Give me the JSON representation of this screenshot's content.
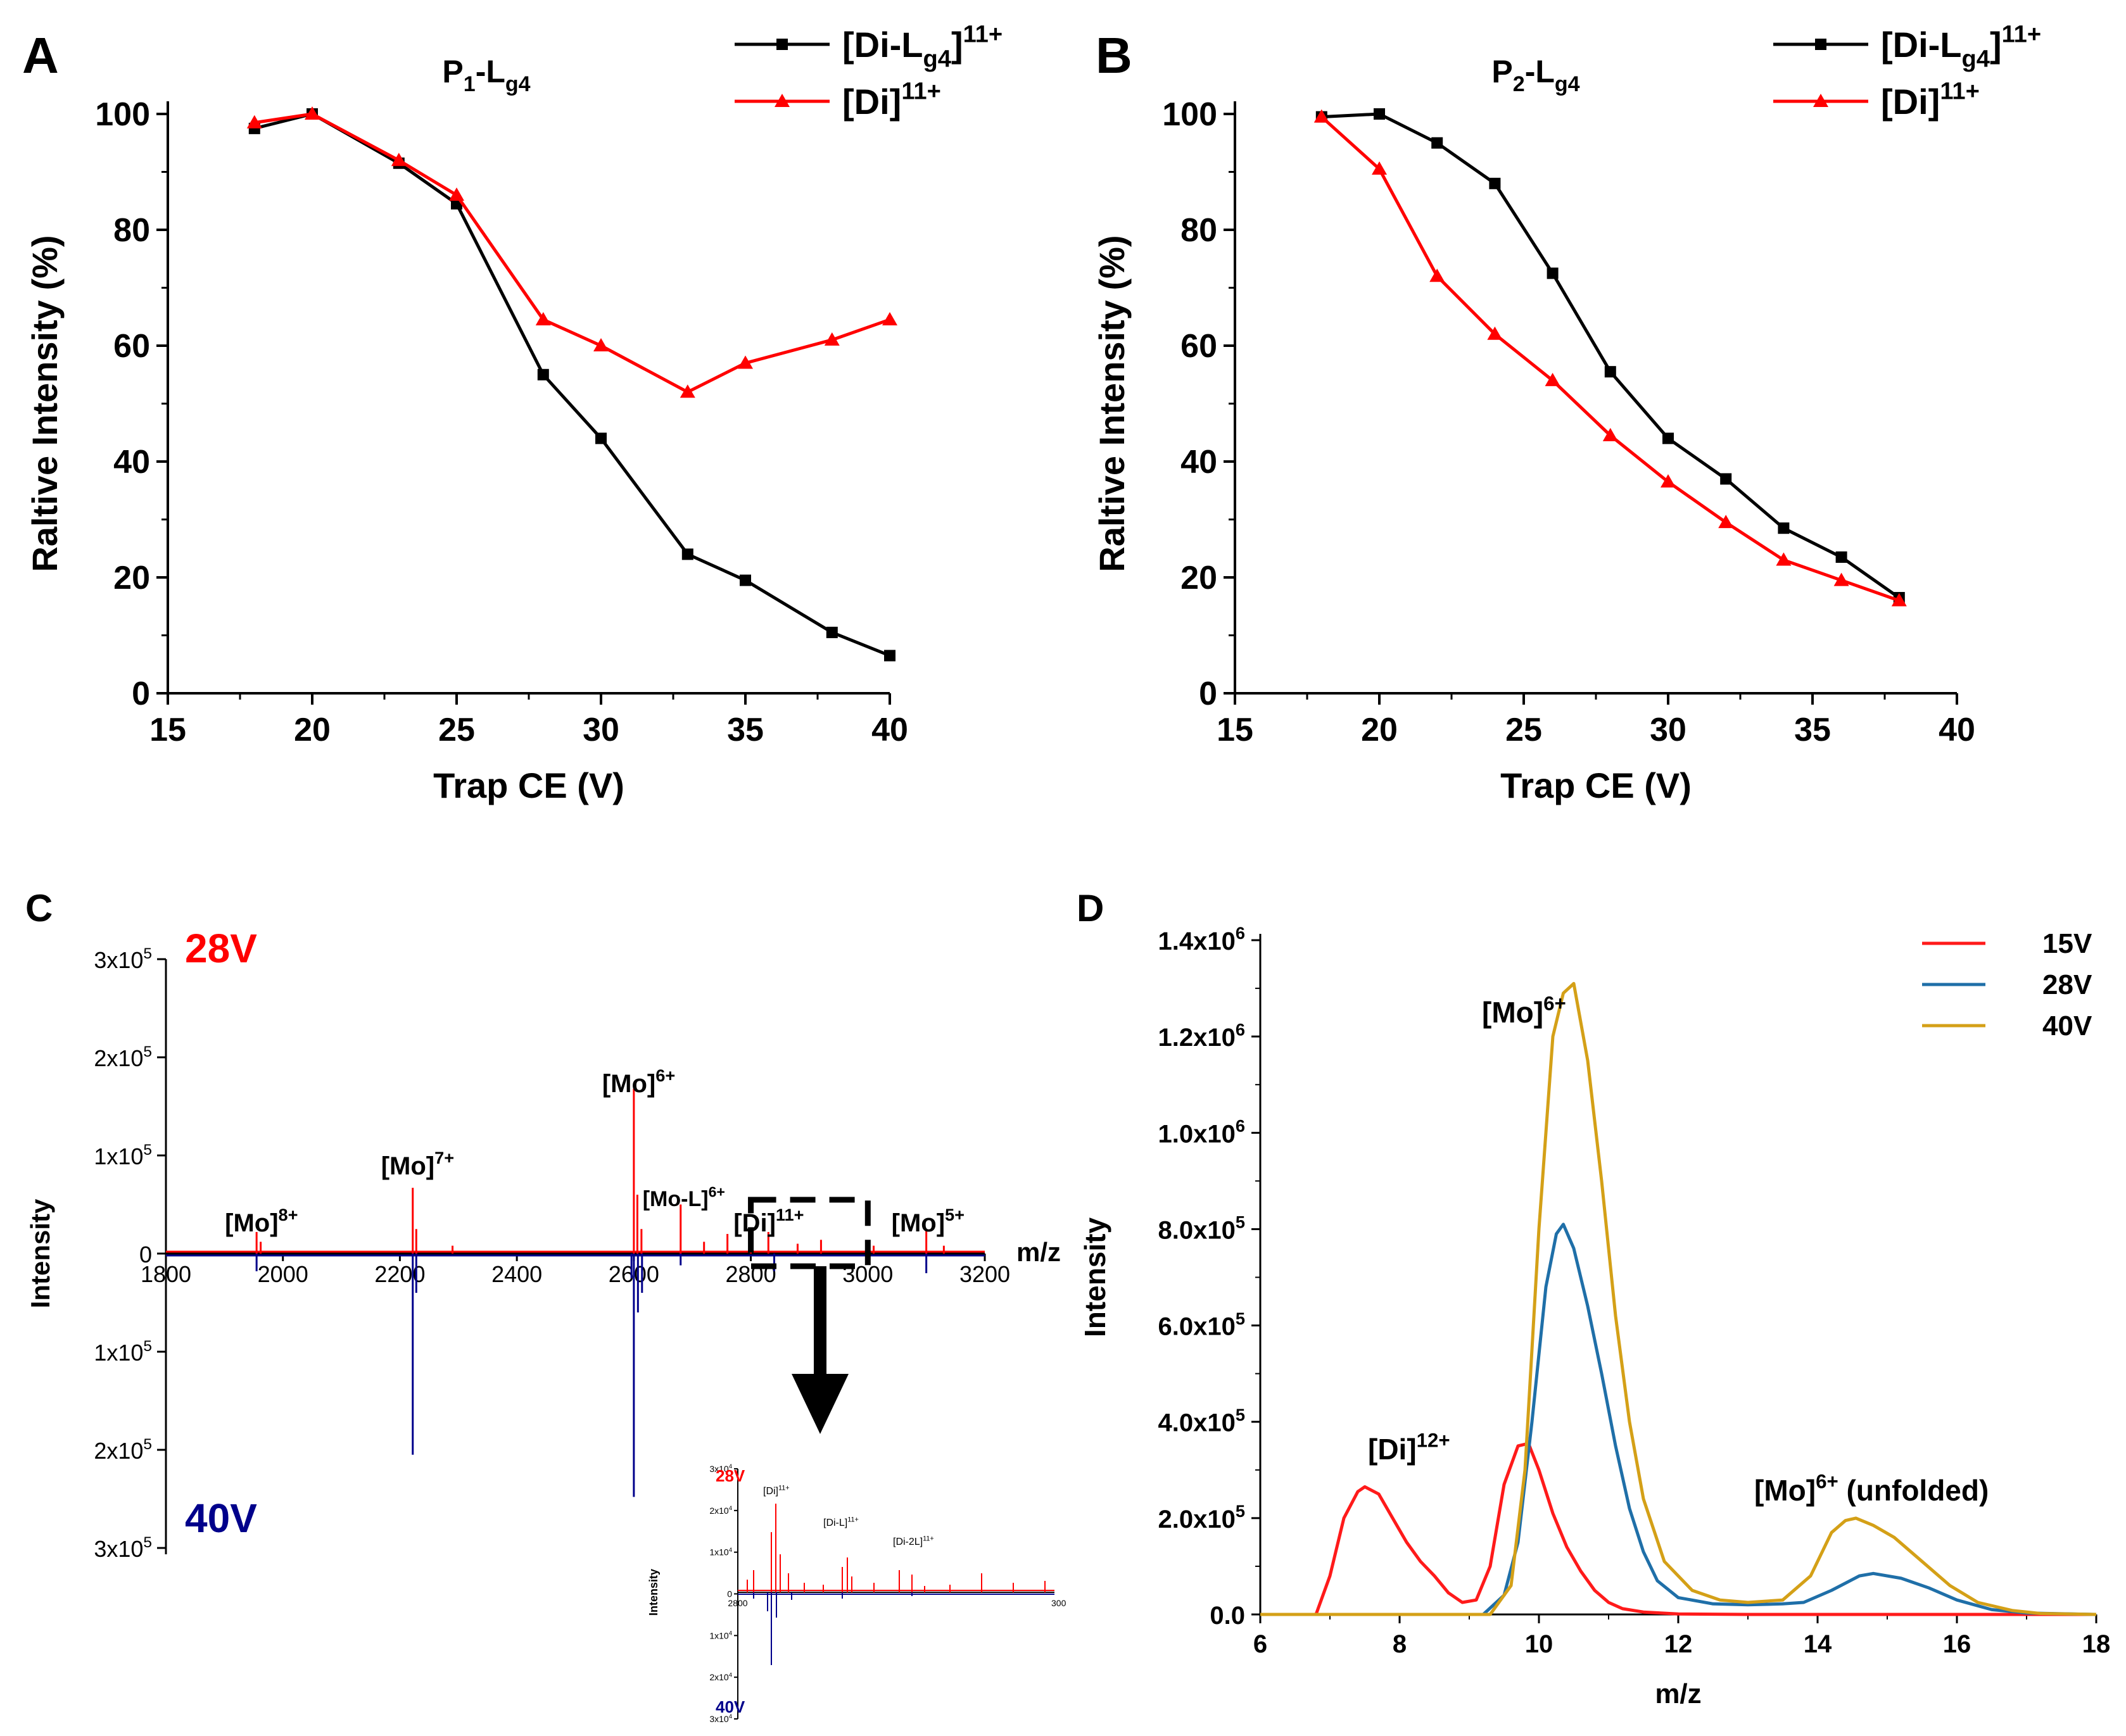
{
  "chart_data": [
    {
      "type": "line",
      "panel": "A",
      "title": "P1-Lg4",
      "title_parts": {
        "base1": "P",
        "sub1": "1",
        "mid": "-L",
        "sub2": "g4"
      },
      "xlabel": "Trap CE (V)",
      "ylabel": "Raltive Intensity (%)",
      "xlim": [
        15,
        40
      ],
      "ylim": [
        0,
        100
      ],
      "xticks": [
        "15",
        "20",
        "25",
        "30",
        "35",
        "40"
      ],
      "yticks": [
        "0",
        "20",
        "40",
        "60",
        "80",
        "100"
      ],
      "legend_position": "top-right",
      "series": [
        {
          "name": "[Di-Lg4]11+",
          "label_parts": {
            "main": "[Di-L",
            "sub": "g4",
            "close": "]",
            "sup": "11+"
          },
          "color": "#000000",
          "marker": "square",
          "x": [
            18,
            20,
            23,
            25,
            28,
            30,
            33,
            35,
            38,
            40
          ],
          "y": [
            97.5,
            100,
            91.5,
            84.5,
            55,
            44,
            24,
            19.5,
            10.5,
            6.5
          ]
        },
        {
          "name": "[Di]11+",
          "label_parts": {
            "main": "[Di",
            "sub": "",
            "close": "]",
            "sup": "11+"
          },
          "color": "#ff0000",
          "marker": "triangle",
          "x": [
            18,
            20,
            23,
            25,
            28,
            30,
            33,
            35,
            38,
            40
          ],
          "y": [
            98.5,
            100,
            92,
            86,
            64.5,
            60,
            52,
            57,
            61,
            64.5
          ]
        }
      ]
    },
    {
      "type": "line",
      "panel": "B",
      "title": "P2-Lg4",
      "title_parts": {
        "base1": "P",
        "sub1": "2",
        "mid": "-L",
        "sub2": "g4"
      },
      "xlabel": "Trap CE (V)",
      "ylabel": "Raltive Intensity (%)",
      "xlim": [
        15,
        40
      ],
      "ylim": [
        0,
        100
      ],
      "xticks": [
        "15",
        "20",
        "25",
        "30",
        "35",
        "40"
      ],
      "yticks": [
        "0",
        "20",
        "40",
        "60",
        "80",
        "100"
      ],
      "legend_position": "top-right",
      "series": [
        {
          "name": "[Di-Lg4]11+",
          "label_parts": {
            "main": "[Di-L",
            "sub": "g4",
            "close": "]",
            "sup": "11+"
          },
          "color": "#000000",
          "marker": "square",
          "x": [
            18,
            20,
            22,
            24,
            26,
            28,
            30,
            32,
            34,
            36,
            38
          ],
          "y": [
            99.5,
            100,
            95,
            88,
            72.5,
            55.5,
            44,
            37,
            28.5,
            23.5,
            16.5
          ]
        },
        {
          "name": "[Di]11+",
          "label_parts": {
            "main": "[Di",
            "sub": "",
            "close": "]",
            "sup": "11+"
          },
          "color": "#ff0000",
          "marker": "triangle",
          "x": [
            18,
            20,
            22,
            24,
            26,
            28,
            30,
            32,
            34,
            36,
            38
          ],
          "y": [
            99.5,
            90.5,
            72,
            62,
            54,
            44.5,
            36.5,
            29.5,
            23,
            19.5,
            16
          ]
        }
      ]
    },
    {
      "type": "spectrum",
      "panel": "C",
      "xlabel": "m/z",
      "ylabel": "Intensity",
      "xlim": [
        1800,
        3200
      ],
      "xticks": [
        "1800",
        "2000",
        "2200",
        "2400",
        "2600",
        "2800",
        "3000",
        "3200"
      ],
      "ylim": [
        -300000,
        300000
      ],
      "yticks": [
        {
          "v": 300000,
          "base": "3x10",
          "exp": "5"
        },
        {
          "v": 200000,
          "base": "2x10",
          "exp": "5"
        },
        {
          "v": 100000,
          "base": "1x10",
          "exp": "5"
        },
        {
          "v": 0,
          "base": "0",
          "exp": ""
        },
        {
          "v": -100000,
          "base": "1x10",
          "exp": "5"
        },
        {
          "v": -200000,
          "base": "2x10",
          "exp": "5"
        },
        {
          "v": -300000,
          "base": "3x10",
          "exp": "5"
        }
      ],
      "series": [
        {
          "name": "28V",
          "color": "#ff0000",
          "direction": "up",
          "peaks": [
            [
              1955,
              22000
            ],
            [
              1962,
              12000
            ],
            [
              2222,
              67000
            ],
            [
              2228,
              25000
            ],
            [
              2290,
              8000
            ],
            [
              2600,
              168000
            ],
            [
              2606,
              60000
            ],
            [
              2613,
              25000
            ],
            [
              2680,
              50000
            ],
            [
              2720,
              12000
            ],
            [
              2760,
              20000
            ],
            [
              2800,
              15000
            ],
            [
              2830,
              22000
            ],
            [
              2880,
              10000
            ],
            [
              2920,
              14000
            ],
            [
              3010,
              8000
            ],
            [
              3100,
              24000
            ],
            [
              3130,
              8000
            ]
          ]
        },
        {
          "name": "40V",
          "color": "#00008b",
          "direction": "down",
          "peaks": [
            [
              1955,
              18000
            ],
            [
              2222,
              205000
            ],
            [
              2228,
              40000
            ],
            [
              2596,
              25000
            ],
            [
              2600,
              248000
            ],
            [
              2607,
              60000
            ],
            [
              2614,
              40000
            ],
            [
              2680,
              12000
            ],
            [
              2840,
              18000
            ],
            [
              3100,
              20000
            ]
          ]
        }
      ],
      "annotations": [
        {
          "base": "[Mo]",
          "sup": "8+",
          "x": 1955
        },
        {
          "base": "[Mo]",
          "sup": "7+",
          "x": 2222
        },
        {
          "base": "[Mo]",
          "sup": "6+",
          "x": 2600
        },
        {
          "base": "[Mo-L]",
          "sup": "6+",
          "x": 2680
        },
        {
          "base": "[Di]",
          "sup": "11+",
          "x": 2830
        },
        {
          "base": "[Mo]",
          "sup": "5+",
          "x": 3100
        }
      ],
      "inset": {
        "label_28V": "28V",
        "label_40V": "40V",
        "ylabel": "Intensity",
        "x_end_label": "300",
        "yticks": [
          {
            "base": "3x10",
            "exp": "4"
          },
          {
            "base": "2x10",
            "exp": "4"
          },
          {
            "base": "1x10",
            "exp": "4"
          },
          {
            "base": "0",
            "exp": ""
          },
          {
            "base": "1x10",
            "exp": "4"
          },
          {
            "base": "2x10",
            "exp": "4"
          },
          {
            "base": "3x10",
            "exp": "4"
          }
        ],
        "x_start_label": "2800",
        "annotations": [
          {
            "base": "[Di]",
            "sup": "11+"
          },
          {
            "base": "[Di-L]",
            "sup": "11+"
          },
          {
            "base": "[Di-2L]",
            "sup": "11+"
          }
        ]
      }
    },
    {
      "type": "line",
      "panel": "D",
      "xlabel": "m/z",
      "ylabel": "Intensity",
      "xlim": [
        6,
        18
      ],
      "xticks": [
        "6",
        "8",
        "10",
        "12",
        "14",
        "16",
        "18"
      ],
      "ylim": [
        0,
        1400000
      ],
      "yticks": [
        {
          "v": 0,
          "base": "0.0",
          "exp": ""
        },
        {
          "v": 200000,
          "base": "2.0x10",
          "exp": "5"
        },
        {
          "v": 400000,
          "base": "4.0x10",
          "exp": "5"
        },
        {
          "v": 600000,
          "base": "6.0x10",
          "exp": "5"
        },
        {
          "v": 800000,
          "base": "8.0x10",
          "exp": "5"
        },
        {
          "v": 1000000,
          "base": "1.0x10",
          "exp": "6"
        },
        {
          "v": 1200000,
          "base": "1.2x10",
          "exp": "6"
        },
        {
          "v": 1400000,
          "base": "1.4x10",
          "exp": "6"
        }
      ],
      "legend_position": "top-right",
      "series": [
        {
          "name": "15V",
          "color": "#ff1a1a",
          "x": [
            6.0,
            6.8,
            7.0,
            7.2,
            7.4,
            7.5,
            7.7,
            7.9,
            8.1,
            8.3,
            8.5,
            8.7,
            8.9,
            9.1,
            9.3,
            9.5,
            9.7,
            9.85,
            10.0,
            10.2,
            10.4,
            10.6,
            10.8,
            11.0,
            11.2,
            11.5,
            12.0,
            13.0,
            18.0
          ],
          "y": [
            0,
            0,
            80000,
            200000,
            255000,
            265000,
            250000,
            200000,
            150000,
            110000,
            80000,
            45000,
            25000,
            30000,
            100000,
            270000,
            350000,
            355000,
            300000,
            210000,
            140000,
            90000,
            50000,
            25000,
            12000,
            5000,
            1000,
            0,
            0
          ]
        },
        {
          "name": "28V",
          "color": "#1f6fa8",
          "x": [
            6.0,
            9.2,
            9.5,
            9.7,
            9.9,
            10.1,
            10.25,
            10.35,
            10.5,
            10.7,
            10.9,
            11.1,
            11.3,
            11.5,
            11.7,
            12.0,
            12.5,
            13.0,
            13.5,
            13.8,
            14.2,
            14.6,
            14.8,
            15.2,
            15.6,
            16.0,
            16.5,
            17.0,
            18.0
          ],
          "y": [
            0,
            0,
            40000,
            150000,
            400000,
            680000,
            790000,
            810000,
            760000,
            640000,
            500000,
            350000,
            220000,
            130000,
            70000,
            35000,
            22000,
            20000,
            22000,
            25000,
            50000,
            80000,
            85000,
            75000,
            55000,
            30000,
            10000,
            3000,
            0
          ]
        },
        {
          "name": "40V",
          "color": "#d4a017",
          "x": [
            6.0,
            9.3,
            9.6,
            9.8,
            10.0,
            10.2,
            10.35,
            10.5,
            10.7,
            10.9,
            11.1,
            11.3,
            11.5,
            11.8,
            12.2,
            12.6,
            13.0,
            13.5,
            13.9,
            14.2,
            14.4,
            14.55,
            14.8,
            15.1,
            15.5,
            15.9,
            16.3,
            16.8,
            17.2,
            18.0
          ],
          "y": [
            0,
            0,
            60000,
            300000,
            800000,
            1200000,
            1290000,
            1310000,
            1150000,
            900000,
            620000,
            400000,
            240000,
            110000,
            50000,
            30000,
            25000,
            30000,
            80000,
            170000,
            195000,
            200000,
            185000,
            160000,
            110000,
            60000,
            25000,
            8000,
            2000,
            0
          ]
        }
      ],
      "annotations": [
        {
          "base": "[Di]",
          "sup": "12+",
          "x": 7.8
        },
        {
          "base": "[Mo]",
          "sup": "6+",
          "x": 10.45
        },
        {
          "base": "[Mo]",
          "sup": "6+",
          "tail": " (unfolded)",
          "x": 15.3
        }
      ]
    }
  ],
  "panel_labels": {
    "A": "A",
    "B": "B",
    "C": "C",
    "D": "D"
  },
  "spectrum_labels": {
    "v28": "28V",
    "v40": "40V"
  }
}
